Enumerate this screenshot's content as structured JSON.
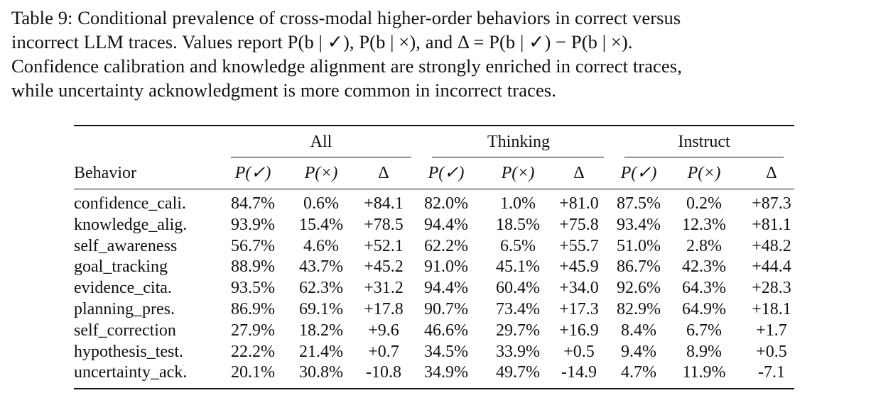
{
  "caption": {
    "line1": "Table 9: Conditional prevalence of cross-modal higher-order behaviors in correct versus",
    "line2": "incorrect LLM traces.  Values report P(b | ✓), P(b | ×), and Δ = P(b | ✓) − P(b | ×).",
    "line3": "Confidence calibration and knowledge alignment are strongly enriched in correct traces,",
    "line4": "while uncertainty acknowledgment is more common in incorrect traces."
  },
  "table": {
    "groups": [
      "All",
      "Thinking",
      "Instruct"
    ],
    "behavior_header": "Behavior",
    "col_headers": [
      "P(✓)",
      "P(×)",
      "Δ",
      "P(✓)",
      "P(×)",
      "Δ",
      "P(✓)",
      "P(×)",
      "Δ"
    ],
    "rows": [
      {
        "behavior": "confidence_cali.",
        "values": [
          "84.7%",
          "0.6%",
          "+84.1",
          "82.0%",
          "1.0%",
          "+81.0",
          "87.5%",
          "0.2%",
          "+87.3"
        ]
      },
      {
        "behavior": "knowledge_alig.",
        "values": [
          "93.9%",
          "15.4%",
          "+78.5",
          "94.4%",
          "18.5%",
          "+75.8",
          "93.4%",
          "12.3%",
          "+81.1"
        ]
      },
      {
        "behavior": "self_awareness",
        "values": [
          "56.7%",
          "4.6%",
          "+52.1",
          "62.2%",
          "6.5%",
          "+55.7",
          "51.0%",
          "2.8%",
          "+48.2"
        ]
      },
      {
        "behavior": "goal_tracking",
        "values": [
          "88.9%",
          "43.7%",
          "+45.2",
          "91.0%",
          "45.1%",
          "+45.9",
          "86.7%",
          "42.3%",
          "+44.4"
        ]
      },
      {
        "behavior": "evidence_cita.",
        "values": [
          "93.5%",
          "62.3%",
          "+31.2",
          "94.4%",
          "60.4%",
          "+34.0",
          "92.6%",
          "64.3%",
          "+28.3"
        ]
      },
      {
        "behavior": "planning_pres.",
        "values": [
          "86.9%",
          "69.1%",
          "+17.8",
          "90.7%",
          "73.4%",
          "+17.3",
          "82.9%",
          "64.9%",
          "+18.1"
        ]
      },
      {
        "behavior": "self_correction",
        "values": [
          "27.9%",
          "18.2%",
          "+9.6",
          "46.6%",
          "29.7%",
          "+16.9",
          "8.4%",
          "6.7%",
          "+1.7"
        ]
      },
      {
        "behavior": "hypothesis_test.",
        "values": [
          "22.2%",
          "21.4%",
          "+0.7",
          "34.5%",
          "33.9%",
          "+0.5",
          "9.4%",
          "8.9%",
          "+0.5"
        ]
      },
      {
        "behavior": "uncertainty_ack.",
        "values": [
          "20.1%",
          "30.8%",
          "-10.8",
          "34.9%",
          "49.7%",
          "-14.9",
          "4.7%",
          "11.9%",
          "-7.1"
        ]
      }
    ]
  }
}
